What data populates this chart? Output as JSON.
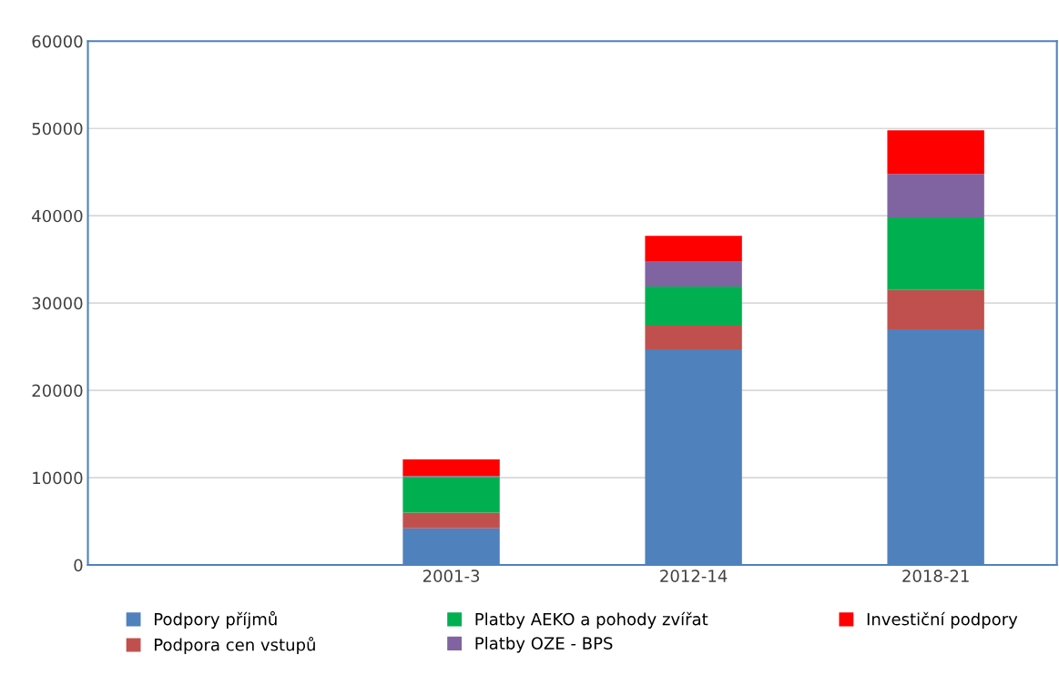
{
  "chart_data": {
    "type": "bar",
    "stacked": true,
    "categories": [
      null,
      "2001-3",
      "2012-14",
      "2018-21"
    ],
    "series": [
      {
        "name": "Podpory příjmů",
        "color": "#4f81bd",
        "values": [
          null,
          4200,
          24700,
          27000
        ]
      },
      {
        "name": "Podpora cen vstupů",
        "color": "#c0504d",
        "values": [
          null,
          1800,
          2700,
          4500
        ]
      },
      {
        "name": "Platby AEKO a pohody zvířat",
        "color": "#00b050",
        "values": [
          null,
          4100,
          4500,
          8300
        ]
      },
      {
        "name": "Platby OZE - BPS",
        "color": "#8064a2",
        "values": [
          null,
          100,
          2900,
          5000
        ]
      },
      {
        "name": "Investiční podpory",
        "color": "#ff0000",
        "values": [
          null,
          1900,
          2900,
          5000
        ]
      }
    ],
    "ylim": [
      0,
      60000
    ],
    "yticks": [
      0,
      10000,
      20000,
      30000,
      40000,
      50000,
      60000
    ],
    "grid": "y",
    "legend": "bottom"
  }
}
